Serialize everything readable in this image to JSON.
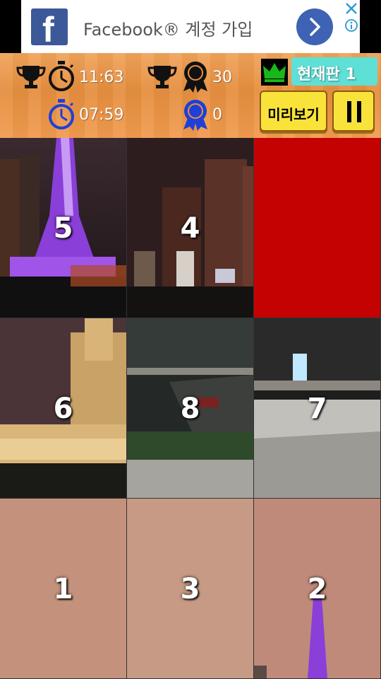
{
  "ad": {
    "text": "Facebook® 계정 가입",
    "logo_letter": "f"
  },
  "header": {
    "best_time": "11:63",
    "current_time": "07:59",
    "best_moves": "30",
    "current_moves": "0",
    "board_label": "현재판  1",
    "preview_label": "미리보기"
  },
  "colors": {
    "header_orange": "#e8913f",
    "empty_tile": "#c50202",
    "badge_teal": "#5ee0d6",
    "button_yellow": "#f9e33a",
    "timer_blue": "#1f3fd8"
  },
  "puzzle": {
    "grid": "3x3",
    "tiles": [
      {
        "label": "5",
        "empty": false
      },
      {
        "label": "4",
        "empty": false
      },
      {
        "label": "",
        "empty": true
      },
      {
        "label": "6",
        "empty": false
      },
      {
        "label": "8",
        "empty": false
      },
      {
        "label": "7",
        "empty": false
      },
      {
        "label": "1",
        "empty": false
      },
      {
        "label": "3",
        "empty": false
      },
      {
        "label": "2",
        "empty": false
      }
    ]
  }
}
